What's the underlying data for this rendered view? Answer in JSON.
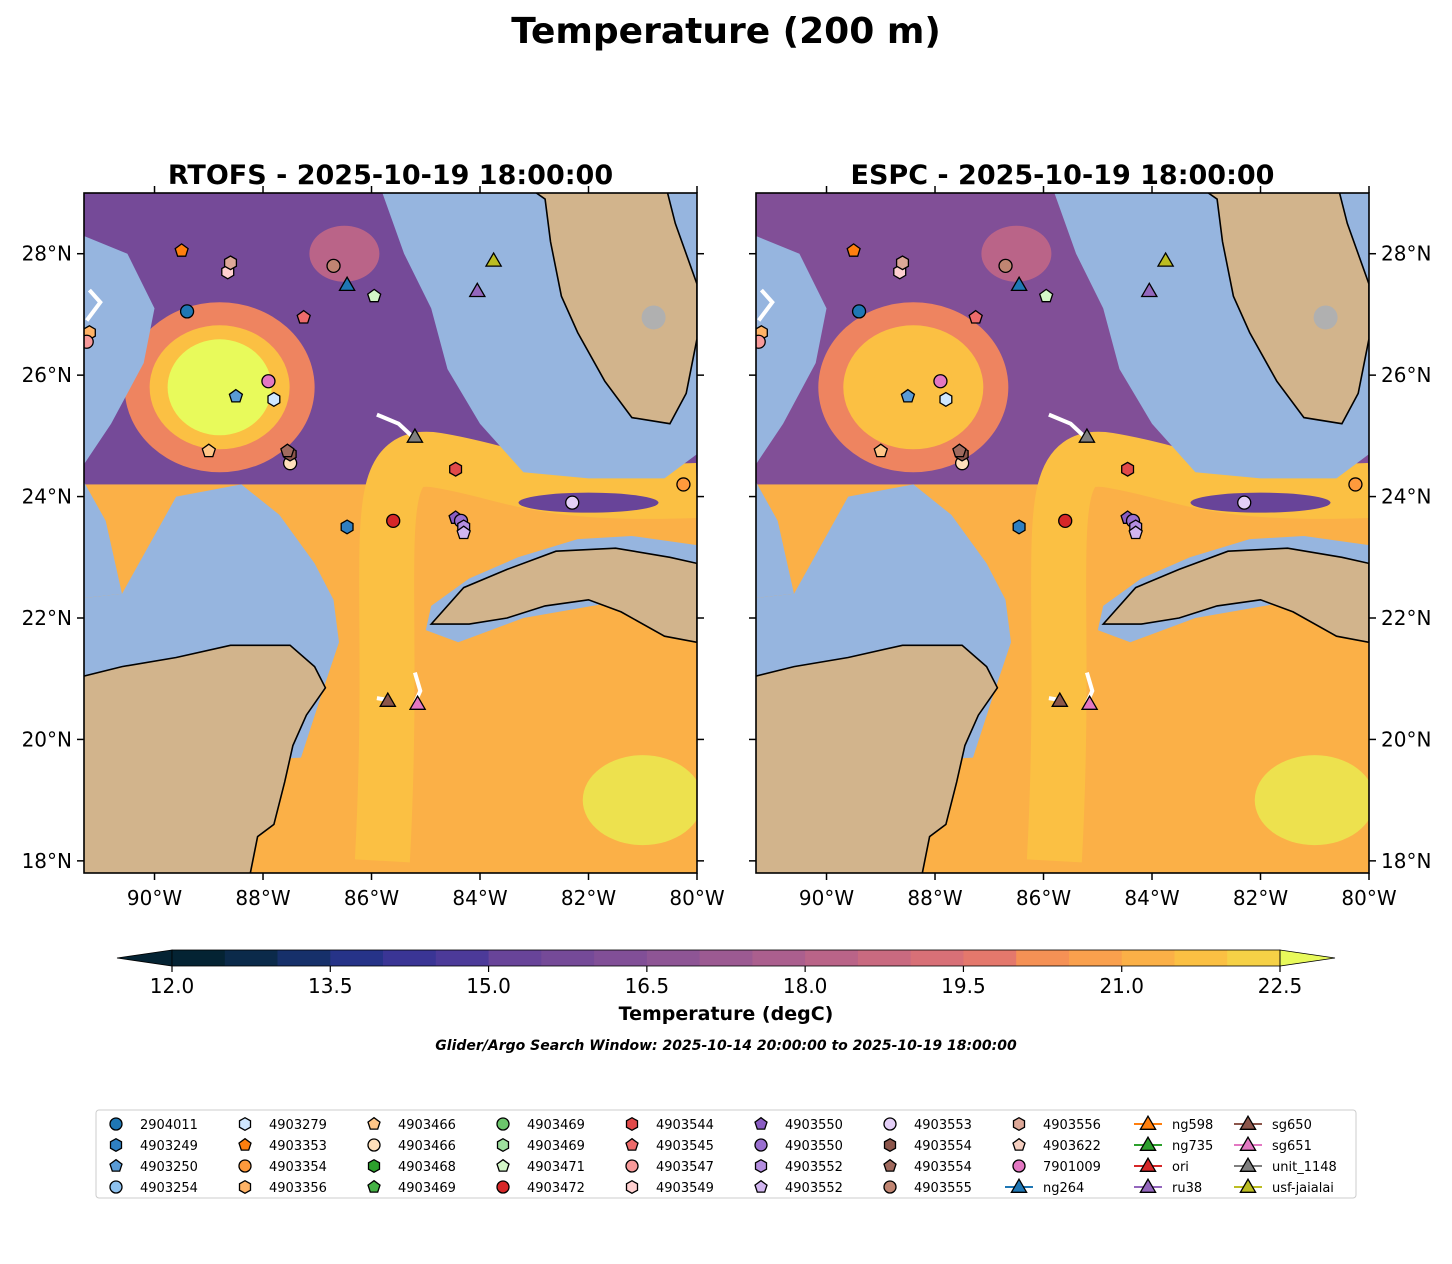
{
  "figure": {
    "title": "Temperature (200 m)",
    "search_window": "Glider/Argo Search Window: 2025-10-14 20:00:00 to 2025-10-19 18:00:00"
  },
  "panels": [
    {
      "title": "RTOFS - 2025-10-19 18:00:00"
    },
    {
      "title": "ESPC - 2025-10-19 18:00:00"
    }
  ],
  "map": {
    "lon_range": [
      -91.3,
      -80.0
    ],
    "lat_range": [
      17.8,
      29.0
    ],
    "lon_ticks": [
      {
        "value": -90,
        "label": "90°W"
      },
      {
        "value": -88,
        "label": "88°W"
      },
      {
        "value": -86,
        "label": "86°W"
      },
      {
        "value": -84,
        "label": "84°W"
      },
      {
        "value": -82,
        "label": "82°W"
      },
      {
        "value": -80,
        "label": "80°W"
      }
    ],
    "lat_ticks": [
      {
        "value": 18,
        "label": "18°N"
      },
      {
        "value": 20,
        "label": "20°N"
      },
      {
        "value": 22,
        "label": "22°N"
      },
      {
        "value": 24,
        "label": "24°N"
      },
      {
        "value": 26,
        "label": "26°N"
      },
      {
        "value": 28,
        "label": "28°N"
      }
    ],
    "colors": {
      "land": "#d2b48c",
      "water_mask": "#96b5df",
      "lake": "#b0b0b0"
    }
  },
  "colorbar": {
    "label": "Temperature (degC)",
    "min": 12.0,
    "max": 22.5,
    "ticks": [
      "12.0",
      "13.5",
      "15.0",
      "16.5",
      "18.0",
      "19.5",
      "21.0",
      "22.5"
    ],
    "colors": [
      "#042333",
      "#0b2a4a",
      "#16306a",
      "#263388",
      "#3a3595",
      "#4c3a99",
      "#5a3e98",
      "#684499",
      "#754a98",
      "#814f97",
      "#8e5595",
      "#9c5a92",
      "#ab5f8e",
      "#ba6488",
      "#c96a80",
      "#d87077",
      "#e4786c",
      "#ee8460",
      "#f59155",
      "#f9a04d",
      "#fbb047",
      "#fbc043",
      "#f6d146",
      "#ede14e",
      "#e8fa5b"
    ]
  },
  "legend": {
    "entries": [
      {
        "label": "2904011",
        "marker": "circle",
        "color": "#1f77b4"
      },
      {
        "label": "4903249",
        "marker": "hexagon",
        "color": "#2f7fc1"
      },
      {
        "label": "4903250",
        "marker": "pentagon",
        "color": "#5a9bd5"
      },
      {
        "label": "4903254",
        "marker": "circle",
        "color": "#8ec1ee"
      },
      {
        "label": "4903279",
        "marker": "hexagon",
        "color": "#cfe7ff"
      },
      {
        "label": "4903353",
        "marker": "pentagon",
        "color": "#ff7f0e"
      },
      {
        "label": "4903354",
        "marker": "circle",
        "color": "#ff9a3c"
      },
      {
        "label": "4903356",
        "marker": "hexagon",
        "color": "#ffb366"
      },
      {
        "label": "4903466",
        "marker": "pentagon",
        "color": "#ffc688"
      },
      {
        "label": "4903466",
        "marker": "circle",
        "color": "#ffe0bb"
      },
      {
        "label": "4903468",
        "marker": "hexagon",
        "color": "#2ca02c"
      },
      {
        "label": "4903469",
        "marker": "pentagon",
        "color": "#45b145"
      },
      {
        "label": "4903469",
        "marker": "circle",
        "color": "#6cc66c"
      },
      {
        "label": "4903469",
        "marker": "hexagon",
        "color": "#9ee09e"
      },
      {
        "label": "4903471",
        "marker": "pentagon",
        "color": "#d4f7c8"
      },
      {
        "label": "4903472",
        "marker": "circle",
        "color": "#d62728"
      },
      {
        "label": "4903544",
        "marker": "hexagon",
        "color": "#e24a4a"
      },
      {
        "label": "4903545",
        "marker": "pentagon",
        "color": "#ed6b6b"
      },
      {
        "label": "4903547",
        "marker": "circle",
        "color": "#f79a9a"
      },
      {
        "label": "4903549",
        "marker": "hexagon",
        "color": "#ffd0d0"
      },
      {
        "label": "4903550",
        "marker": "pentagon",
        "color": "#8a5cc2"
      },
      {
        "label": "4903550",
        "marker": "circle",
        "color": "#9a6fd0"
      },
      {
        "label": "4903552",
        "marker": "hexagon",
        "color": "#b48ee0"
      },
      {
        "label": "4903552",
        "marker": "pentagon",
        "color": "#d1b5ef"
      },
      {
        "label": "4903553",
        "marker": "circle",
        "color": "#e4cff7"
      },
      {
        "label": "4903554",
        "marker": "hexagon",
        "color": "#8c564b"
      },
      {
        "label": "4903554",
        "marker": "pentagon",
        "color": "#a06a5e"
      },
      {
        "label": "4903555",
        "marker": "circle",
        "color": "#c08572"
      },
      {
        "label": "4903556",
        "marker": "hexagon",
        "color": "#dda898"
      },
      {
        "label": "4903622",
        "marker": "pentagon",
        "color": "#f5cfc0"
      },
      {
        "label": "7901009",
        "marker": "circle",
        "color": "#e377c2"
      },
      {
        "label": "ng264",
        "marker": "triangle",
        "color": "#1f77b4"
      },
      {
        "label": "ng598",
        "marker": "triangle",
        "color": "#ff7f0e"
      },
      {
        "label": "ng735",
        "marker": "triangle",
        "color": "#2ca02c"
      },
      {
        "label": "ori",
        "marker": "triangle",
        "color": "#d62728"
      },
      {
        "label": "ru38",
        "marker": "triangle",
        "color": "#9467bd"
      },
      {
        "label": "sg650",
        "marker": "triangle",
        "color": "#8c564b"
      },
      {
        "label": "sg651",
        "marker": "triangle",
        "color": "#e377c2"
      },
      {
        "label": "unit_1148",
        "marker": "triangle",
        "color": "#7f7f7f"
      },
      {
        "label": "usf-jaialai",
        "marker": "triangle",
        "color": "#bcbd22"
      }
    ]
  },
  "platforms": [
    {
      "id": "2904011",
      "lon": -89.4,
      "lat": 27.05,
      "marker": "circle",
      "color": "#1f77b4"
    },
    {
      "id": "4903249",
      "lon": -86.45,
      "lat": 23.5,
      "marker": "hexagon",
      "color": "#2f7fc1"
    },
    {
      "id": "4903250",
      "lon": -88.5,
      "lat": 25.65,
      "marker": "pentagon",
      "color": "#5a9bd5"
    },
    {
      "id": "4903279",
      "lon": -87.8,
      "lat": 25.6,
      "marker": "hexagon",
      "color": "#cfe7ff"
    },
    {
      "id": "4903353",
      "lon": -89.5,
      "lat": 28.05,
      "marker": "pentagon",
      "color": "#ff7f0e"
    },
    {
      "id": "4903354",
      "lon": -80.25,
      "lat": 24.2,
      "marker": "circle",
      "color": "#ff9a3c"
    },
    {
      "id": "4903356",
      "lon": -91.2,
      "lat": 26.7,
      "marker": "hexagon",
      "color": "#ffb366"
    },
    {
      "id": "4903466",
      "lon": -89.0,
      "lat": 24.75,
      "marker": "pentagon",
      "color": "#ffc688"
    },
    {
      "id": "4903466",
      "lon": -87.5,
      "lat": 24.55,
      "marker": "circle",
      "color": "#ffe0bb"
    },
    {
      "id": "4903471",
      "lon": -85.95,
      "lat": 27.3,
      "marker": "pentagon",
      "color": "#d4f7c8"
    },
    {
      "id": "4903472",
      "lon": -85.6,
      "lat": 23.6,
      "marker": "circle",
      "color": "#d62728"
    },
    {
      "id": "4903544",
      "lon": -84.45,
      "lat": 24.45,
      "marker": "hexagon",
      "color": "#e24a4a"
    },
    {
      "id": "4903545",
      "lon": -87.25,
      "lat": 26.95,
      "marker": "pentagon",
      "color": "#ed6b6b"
    },
    {
      "id": "4903547",
      "lon": -91.25,
      "lat": 26.55,
      "marker": "circle",
      "color": "#f79a9a"
    },
    {
      "id": "4903549",
      "lon": -88.65,
      "lat": 27.7,
      "marker": "hexagon",
      "color": "#ffd0d0"
    },
    {
      "id": "4903550",
      "lon": -84.45,
      "lat": 23.65,
      "marker": "pentagon",
      "color": "#8a5cc2"
    },
    {
      "id": "4903550",
      "lon": -84.35,
      "lat": 23.6,
      "marker": "circle",
      "color": "#9a6fd0"
    },
    {
      "id": "4903552",
      "lon": -84.3,
      "lat": 23.5,
      "marker": "hexagon",
      "color": "#b48ee0"
    },
    {
      "id": "4903552",
      "lon": -84.3,
      "lat": 23.4,
      "marker": "pentagon",
      "color": "#d1b5ef"
    },
    {
      "id": "4903553",
      "lon": -82.3,
      "lat": 23.9,
      "marker": "circle",
      "color": "#e4cff7"
    },
    {
      "id": "4903554",
      "lon": -87.5,
      "lat": 24.7,
      "marker": "hexagon",
      "color": "#8c564b"
    },
    {
      "id": "4903554",
      "lon": -87.55,
      "lat": 24.75,
      "marker": "pentagon",
      "color": "#a06a5e"
    },
    {
      "id": "4903555",
      "lon": -86.7,
      "lat": 27.8,
      "marker": "circle",
      "color": "#c08572"
    },
    {
      "id": "4903556",
      "lon": -88.6,
      "lat": 27.85,
      "marker": "hexagon",
      "color": "#dda898"
    },
    {
      "id": "7901009",
      "lon": -87.9,
      "lat": 25.9,
      "marker": "circle",
      "color": "#e377c2"
    },
    {
      "id": "ng264",
      "lon": -86.45,
      "lat": 27.5,
      "marker": "triangle",
      "color": "#1f77b4"
    },
    {
      "id": "ru38",
      "lon": -84.05,
      "lat": 27.4,
      "marker": "triangle",
      "color": "#9467bd"
    },
    {
      "id": "usf-jaialai",
      "lon": -83.75,
      "lat": 27.9,
      "marker": "triangle",
      "color": "#bcbd22"
    },
    {
      "id": "unit_1148",
      "lon": -85.2,
      "lat": 25.0,
      "marker": "triangle",
      "color": "#7f7f7f"
    },
    {
      "id": "sg650",
      "lon": -85.7,
      "lat": 20.65,
      "marker": "triangle",
      "color": "#8c564b"
    },
    {
      "id": "sg651",
      "lon": -85.15,
      "lat": 20.6,
      "marker": "triangle",
      "color": "#e377c2"
    }
  ]
}
